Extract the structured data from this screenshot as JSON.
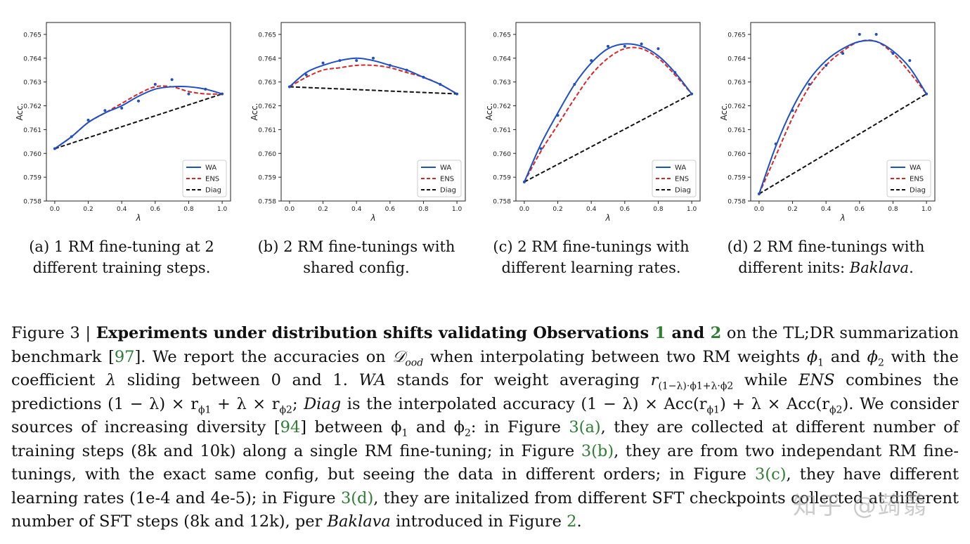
{
  "chart_data": [
    {
      "type": "line",
      "title": "",
      "xlabel": "λ",
      "ylabel": "Acc.",
      "xlim": [
        -0.05,
        1.05
      ],
      "ylim": [
        0.758,
        0.7655
      ],
      "xticks": [
        "0.0",
        "0.2",
        "0.4",
        "0.6",
        "0.8",
        "1.0"
      ],
      "yticks": [
        "0.758",
        "0.759",
        "0.760",
        "0.761",
        "0.762",
        "0.763",
        "0.764",
        "0.765"
      ],
      "legend_position": "lower-right",
      "grid": false,
      "series": [
        {
          "name": "WA",
          "color": "#1f4fc4",
          "style": "solid",
          "x": [
            0.0,
            0.1,
            0.2,
            0.3,
            0.4,
            0.5,
            0.6,
            0.7,
            0.8,
            0.9,
            1.0
          ],
          "y": [
            0.7602,
            0.7607,
            0.7613,
            0.7617,
            0.762,
            0.7624,
            0.7627,
            0.7628,
            0.7628,
            0.7627,
            0.7625
          ]
        },
        {
          "name": "ENS",
          "color": "#d62728",
          "style": "dashed",
          "x": [
            0.0,
            0.1,
            0.2,
            0.3,
            0.4,
            0.5,
            0.6,
            0.7,
            0.8,
            0.9,
            1.0
          ],
          "y": [
            0.7602,
            0.7607,
            0.7613,
            0.7617,
            0.7621,
            0.7625,
            0.7628,
            0.7628,
            0.7626,
            0.7625,
            0.7625
          ]
        },
        {
          "name": "Diag",
          "color": "#111111",
          "style": "dashed",
          "x": [
            0.0,
            1.0
          ],
          "y": [
            0.7602,
            0.7625
          ]
        }
      ],
      "points": [
        {
          "x": 0.0,
          "y": 0.7602
        },
        {
          "x": 0.1,
          "y": 0.7607
        },
        {
          "x": 0.2,
          "y": 0.7614
        },
        {
          "x": 0.3,
          "y": 0.7618
        },
        {
          "x": 0.4,
          "y": 0.7619
        },
        {
          "x": 0.5,
          "y": 0.7622
        },
        {
          "x": 0.6,
          "y": 0.7629
        },
        {
          "x": 0.7,
          "y": 0.7631
        },
        {
          "x": 0.8,
          "y": 0.7625
        },
        {
          "x": 0.9,
          "y": 0.7627
        },
        {
          "x": 1.0,
          "y": 0.7625
        }
      ]
    },
    {
      "type": "line",
      "title": "",
      "xlabel": "λ",
      "ylabel": "Acc.",
      "xlim": [
        -0.05,
        1.05
      ],
      "ylim": [
        0.758,
        0.7655
      ],
      "xticks": [
        "0.0",
        "0.2",
        "0.4",
        "0.6",
        "0.8",
        "1.0"
      ],
      "yticks": [
        "0.758",
        "0.759",
        "0.760",
        "0.761",
        "0.762",
        "0.763",
        "0.764",
        "0.765"
      ],
      "legend_position": "lower-right",
      "grid": false,
      "series": [
        {
          "name": "WA",
          "color": "#1f4fc4",
          "style": "solid",
          "x": [
            0.0,
            0.1,
            0.2,
            0.3,
            0.4,
            0.5,
            0.6,
            0.7,
            0.8,
            0.9,
            1.0
          ],
          "y": [
            0.7628,
            0.7634,
            0.7637,
            0.7639,
            0.764,
            0.7639,
            0.7637,
            0.7635,
            0.7632,
            0.7629,
            0.7625
          ]
        },
        {
          "name": "ENS",
          "color": "#d62728",
          "style": "dashed",
          "x": [
            0.0,
            0.1,
            0.2,
            0.3,
            0.4,
            0.5,
            0.6,
            0.7,
            0.8,
            0.9,
            1.0
          ],
          "y": [
            0.7628,
            0.7632,
            0.7635,
            0.7636,
            0.7637,
            0.7637,
            0.7636,
            0.7634,
            0.7632,
            0.7629,
            0.7625
          ]
        },
        {
          "name": "Diag",
          "color": "#111111",
          "style": "dashed",
          "x": [
            0.0,
            1.0
          ],
          "y": [
            0.7628,
            0.7625
          ]
        }
      ],
      "points": [
        {
          "x": 0.0,
          "y": 0.7628
        },
        {
          "x": 0.1,
          "y": 0.7633
        },
        {
          "x": 0.2,
          "y": 0.7638
        },
        {
          "x": 0.3,
          "y": 0.7639
        },
        {
          "x": 0.4,
          "y": 0.7639
        },
        {
          "x": 0.5,
          "y": 0.764
        },
        {
          "x": 0.6,
          "y": 0.7637
        },
        {
          "x": 0.7,
          "y": 0.7635
        },
        {
          "x": 0.8,
          "y": 0.7632
        },
        {
          "x": 0.9,
          "y": 0.7629
        },
        {
          "x": 1.0,
          "y": 0.7625
        }
      ]
    },
    {
      "type": "line",
      "title": "",
      "xlabel": "λ",
      "ylabel": "Acc.",
      "xlim": [
        -0.05,
        1.05
      ],
      "ylim": [
        0.758,
        0.7655
      ],
      "xticks": [
        "0.0",
        "0.2",
        "0.4",
        "0.6",
        "0.8",
        "1.0"
      ],
      "yticks": [
        "0.758",
        "0.759",
        "0.760",
        "0.761",
        "0.762",
        "0.763",
        "0.764",
        "0.765"
      ],
      "legend_position": "lower-right",
      "grid": false,
      "series": [
        {
          "name": "WA",
          "color": "#1f4fc4",
          "style": "solid",
          "x": [
            0.0,
            0.1,
            0.2,
            0.3,
            0.4,
            0.5,
            0.6,
            0.7,
            0.8,
            0.9,
            1.0
          ],
          "y": [
            0.7588,
            0.7604,
            0.7617,
            0.7629,
            0.7638,
            0.7644,
            0.7646,
            0.7645,
            0.7641,
            0.7634,
            0.7625
          ]
        },
        {
          "name": "ENS",
          "color": "#d62728",
          "style": "dashed",
          "x": [
            0.0,
            0.1,
            0.2,
            0.3,
            0.4,
            0.5,
            0.6,
            0.7,
            0.8,
            0.9,
            1.0
          ],
          "y": [
            0.7588,
            0.7601,
            0.7612,
            0.7623,
            0.7633,
            0.764,
            0.7644,
            0.7644,
            0.764,
            0.7633,
            0.7625
          ]
        },
        {
          "name": "Diag",
          "color": "#111111",
          "style": "dashed",
          "x": [
            0.0,
            1.0
          ],
          "y": [
            0.7588,
            0.7625
          ]
        }
      ],
      "points": [
        {
          "x": 0.0,
          "y": 0.7588
        },
        {
          "x": 0.1,
          "y": 0.7602
        },
        {
          "x": 0.2,
          "y": 0.7616
        },
        {
          "x": 0.3,
          "y": 0.7629
        },
        {
          "x": 0.4,
          "y": 0.7639
        },
        {
          "x": 0.5,
          "y": 0.7645
        },
        {
          "x": 0.6,
          "y": 0.7645
        },
        {
          "x": 0.7,
          "y": 0.7646
        },
        {
          "x": 0.8,
          "y": 0.7644
        },
        {
          "x": 0.9,
          "y": 0.7634
        },
        {
          "x": 1.0,
          "y": 0.7625
        }
      ]
    },
    {
      "type": "line",
      "title": "",
      "xlabel": "λ",
      "ylabel": "Acc.",
      "xlim": [
        -0.05,
        1.05
      ],
      "ylim": [
        0.758,
        0.7655
      ],
      "xticks": [
        "0.0",
        "0.2",
        "0.4",
        "0.6",
        "0.8",
        "1.0"
      ],
      "yticks": [
        "0.758",
        "0.759",
        "0.760",
        "0.761",
        "0.762",
        "0.763",
        "0.764",
        "0.765"
      ],
      "legend_position": "lower-right",
      "grid": false,
      "series": [
        {
          "name": "WA",
          "color": "#1f4fc4",
          "style": "solid",
          "x": [
            0.0,
            0.1,
            0.2,
            0.3,
            0.4,
            0.5,
            0.6,
            0.7,
            0.8,
            0.9,
            1.0
          ],
          "y": [
            0.7583,
            0.7603,
            0.7619,
            0.7631,
            0.7639,
            0.7644,
            0.7647,
            0.7647,
            0.7643,
            0.7636,
            0.7625
          ]
        },
        {
          "name": "ENS",
          "color": "#d62728",
          "style": "dashed",
          "x": [
            0.0,
            0.1,
            0.2,
            0.3,
            0.4,
            0.5,
            0.6,
            0.7,
            0.8,
            0.9,
            1.0
          ],
          "y": [
            0.7583,
            0.7599,
            0.7615,
            0.7628,
            0.7637,
            0.7643,
            0.7647,
            0.7647,
            0.7642,
            0.7634,
            0.7625
          ]
        },
        {
          "name": "Diag",
          "color": "#111111",
          "style": "dashed",
          "x": [
            0.0,
            1.0
          ],
          "y": [
            0.7583,
            0.7625
          ]
        }
      ],
      "points": [
        {
          "x": 0.0,
          "y": 0.7583
        },
        {
          "x": 0.1,
          "y": 0.7604
        },
        {
          "x": 0.2,
          "y": 0.7618
        },
        {
          "x": 0.3,
          "y": 0.7629
        },
        {
          "x": 0.4,
          "y": 0.7637
        },
        {
          "x": 0.5,
          "y": 0.7642
        },
        {
          "x": 0.6,
          "y": 0.765
        },
        {
          "x": 0.7,
          "y": 0.765
        },
        {
          "x": 0.8,
          "y": 0.7642
        },
        {
          "x": 0.9,
          "y": 0.7639
        },
        {
          "x": 1.0,
          "y": 0.7625
        }
      ]
    }
  ],
  "subcaptions": [
    {
      "line1": "(a) 1 RM fine-tuning at 2",
      "line2": "different training steps."
    },
    {
      "line1": "(b) 2 RM fine-tunings with",
      "line2": "shared config."
    },
    {
      "line1": "(c) 2 RM fine-tunings with",
      "line2": "different learning rates."
    },
    {
      "line1": "(d) 2 RM fine-tunings with",
      "line2_plain": "different inits: ",
      "line2_italic": "Baklava",
      "line2_end": "."
    }
  ],
  "caption": {
    "fig_label": "Figure 3 | ",
    "bold_a": "Experiments under distribution shifts validating Observations ",
    "ref_1": "1",
    "bold_and": " and ",
    "ref_2": "2",
    "t1": " on the TL;DR summarization benchmark [",
    "ref_97": "97",
    "t2": "]. We report the accuracies on ",
    "d_ood": "𝒟",
    "d_ood_sub": "ood",
    "t3": " when interpolating between two RM weights ",
    "phi1": "ϕ",
    "phi1_sub": "1",
    "t4": " and ",
    "phi2": "ϕ",
    "phi2_sub": "2",
    "t5": " with the coefficient ",
    "lambda": "λ",
    "t6": " sliding between 0 and 1. ",
    "wa": "WA",
    "t7": " stands for weight averaging ",
    "r_wa": "r",
    "r_wa_sub": "(1−λ)·ϕ1+λ·ϕ2",
    "t8": " while ",
    "ens": "ENS",
    "t9": " combines the predictions (1 − λ) × r",
    "r1_sub": "ϕ1",
    "t10": " + λ × r",
    "r2_sub": "ϕ2",
    "t11": "; ",
    "diag": "Diag",
    "t12": " is the interpolated accuracy (1 − λ) × Acc(r",
    "a1_sub": "ϕ1",
    "t13": ") + λ × Acc(r",
    "a2_sub": "ϕ2",
    "t14": "). We consider sources of increasing diversity [",
    "ref_94": "94",
    "t15": "] between ϕ",
    "b1_sub": "1",
    "t16": " and ϕ",
    "b2_sub": "2",
    "t17": ": in Figure ",
    "ref_3a": "3(a)",
    "t18": ", they are collected at different number of training steps (8k and 10k) along a single RM fine-tuning; in Figure ",
    "ref_3b": "3(b)",
    "t19": ", they are from two independant RM fine-tunings, with the exact same config, but seeing the data in different orders; in Figure ",
    "ref_3c": "3(c)",
    "t20": ", they have different learning rates (1e-4 and 4e-5); in Figure ",
    "ref_3d": "3(d)",
    "t21": ", they are initalized from different SFT checkpoints collected at different number of SFT steps (8k and 12k), per ",
    "baklava": "Baklava",
    "t22": " introduced in Figure ",
    "ref_fig2": "2",
    "t23": "."
  },
  "watermark": "知乎 @蒟蒻"
}
